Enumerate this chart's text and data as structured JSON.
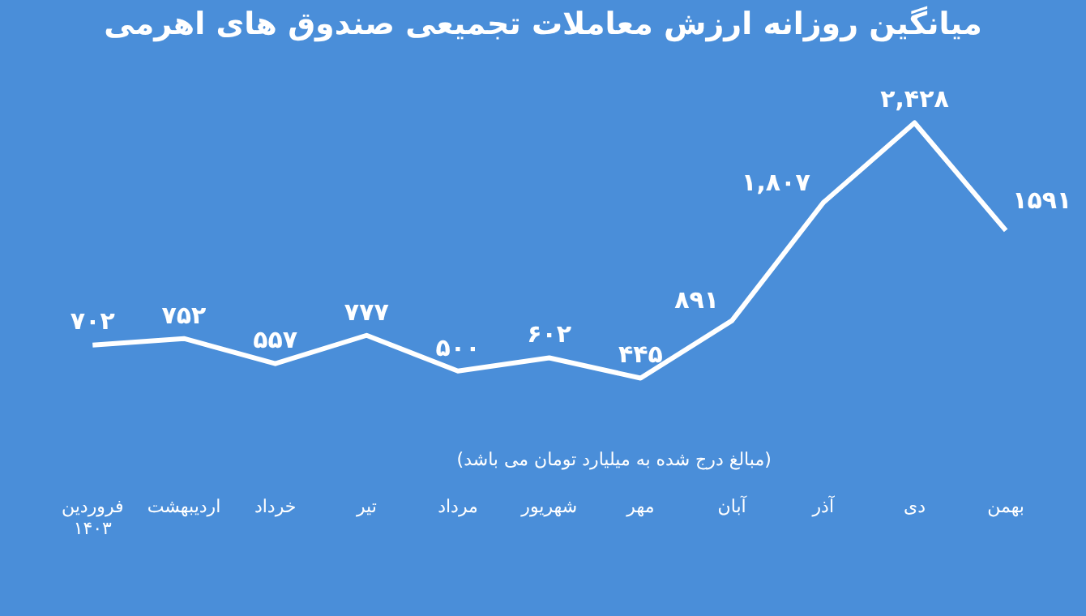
{
  "chart_data": {
    "type": "line",
    "title": "میانگین روزانه ارزش معاملات تجمیعی صندوق های اهرمی",
    "categories": [
      "فروردین\n۱۴۰۳",
      "اردیبهشت",
      "خرداد",
      "تیر",
      "مرداد",
      "شهریور",
      "مهر",
      "آبان",
      "آذر",
      "دی",
      "بهمن"
    ],
    "values": [
      702,
      752,
      557,
      777,
      500,
      602,
      445,
      891,
      1807,
      2428,
      1591
    ],
    "value_labels": [
      "۷۰۲",
      "۷۵۲",
      "۵۵۷",
      "۷۷۷",
      "۵۰۰",
      "۶۰۲",
      "۴۴۵",
      "۸۹۱",
      "۱,۸۰۷",
      "۲,۴۲۸",
      "۱۵۹۱"
    ],
    "color": "#ffffff",
    "marker": "none",
    "grid": false,
    "legend": false,
    "tick_labels": "x",
    "annotations": [
      "(مبالغ درج شده به میلیارد تومان می باشد)"
    ]
  }
}
